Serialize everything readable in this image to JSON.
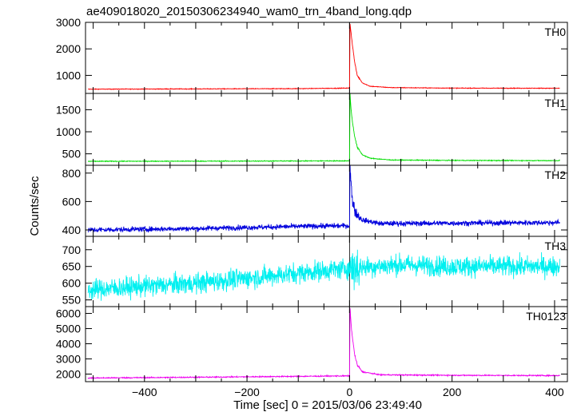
{
  "title": "ae409018020_20150306234940_wam0_trn_4band_long.qdp",
  "xlabel": "Time [sec] 0 = 2015/03/06 23:49:40",
  "ylabel": "Counts/sec",
  "chart_data": {
    "type": "line",
    "title": "ae409018020_20150306234940_wam0_trn_4band_long.qdp",
    "xlabel": "Time [sec] 0 = 2015/03/06 23:49:40",
    "ylabel": "Counts/sec",
    "xlim": [
      -515,
      425
    ],
    "x_ticks": [
      -400,
      -200,
      0,
      200,
      400
    ],
    "trigger_time": 0,
    "panels": [
      {
        "name": "TH0",
        "color": "#ff0000",
        "ylim": [
          320,
          3000
        ],
        "y_ticks": [
          1000,
          2000,
          3000
        ],
        "baseline_start": 480,
        "baseline_end": 520,
        "noise": 12,
        "peak": 2950,
        "decay_time": 4,
        "points": [
          [
            -510,
            480
          ],
          [
            -300,
            490
          ],
          [
            -100,
            500
          ],
          [
            0,
            520
          ],
          [
            1,
            2950
          ],
          [
            3,
            2600
          ],
          [
            6,
            2100
          ],
          [
            10,
            1500
          ],
          [
            15,
            1000
          ],
          [
            25,
            720
          ],
          [
            40,
            590
          ],
          [
            80,
            540
          ],
          [
            200,
            520
          ],
          [
            410,
            515
          ]
        ]
      },
      {
        "name": "TH1",
        "color": "#00dd00",
        "ylim": [
          240,
          1870
        ],
        "y_ticks": [
          500,
          1000,
          1500
        ],
        "baseline_start": 330,
        "baseline_end": 345,
        "noise": 9,
        "peak": 1860,
        "decay_time": 4,
        "points": [
          [
            -510,
            330
          ],
          [
            -200,
            335
          ],
          [
            0,
            340
          ],
          [
            1,
            1860
          ],
          [
            3,
            1500
          ],
          [
            6,
            1200
          ],
          [
            10,
            900
          ],
          [
            15,
            650
          ],
          [
            25,
            480
          ],
          [
            40,
            400
          ],
          [
            80,
            360
          ],
          [
            200,
            350
          ],
          [
            410,
            345
          ]
        ]
      },
      {
        "name": "TH2",
        "color": "#0000dd",
        "ylim": [
          355,
          855
        ],
        "y_ticks": [
          400,
          600,
          800
        ],
        "baseline_start": 400,
        "baseline_end": 450,
        "noise": 18,
        "peak": 850,
        "decay_time": 5,
        "points": [
          [
            -510,
            400
          ],
          [
            -300,
            410
          ],
          [
            -100,
            425
          ],
          [
            0,
            430
          ],
          [
            1,
            850
          ],
          [
            3,
            720
          ],
          [
            6,
            600
          ],
          [
            12,
            520
          ],
          [
            25,
            470
          ],
          [
            60,
            445
          ],
          [
            200,
            448
          ],
          [
            410,
            452
          ]
        ]
      },
      {
        "name": "TH3",
        "color": "#00f0f0",
        "ylim": [
          530,
          740
        ],
        "y_ticks": [
          550,
          600,
          650,
          700
        ],
        "baseline_start": 580,
        "baseline_end": 655,
        "noise": 30,
        "points": [
          [
            -510,
            580
          ],
          [
            -300,
            600
          ],
          [
            -100,
            630
          ],
          [
            0,
            645
          ],
          [
            100,
            655
          ],
          [
            200,
            650
          ],
          [
            410,
            650
          ]
        ]
      },
      {
        "name": "TH0123",
        "color": "#ee00ee",
        "ylim": [
          1500,
          6450
        ],
        "y_ticks": [
          2000,
          3000,
          4000,
          5000,
          6000
        ],
        "baseline_start": 1740,
        "baseline_end": 1900,
        "noise": 35,
        "peak": 6350,
        "decay_time": 4,
        "points": [
          [
            -510,
            1740
          ],
          [
            -300,
            1790
          ],
          [
            -100,
            1850
          ],
          [
            0,
            1880
          ],
          [
            1,
            6350
          ],
          [
            3,
            5300
          ],
          [
            6,
            4300
          ],
          [
            10,
            3300
          ],
          [
            15,
            2600
          ],
          [
            25,
            2150
          ],
          [
            60,
            1950
          ],
          [
            200,
            1920
          ],
          [
            410,
            1900
          ]
        ]
      }
    ]
  }
}
